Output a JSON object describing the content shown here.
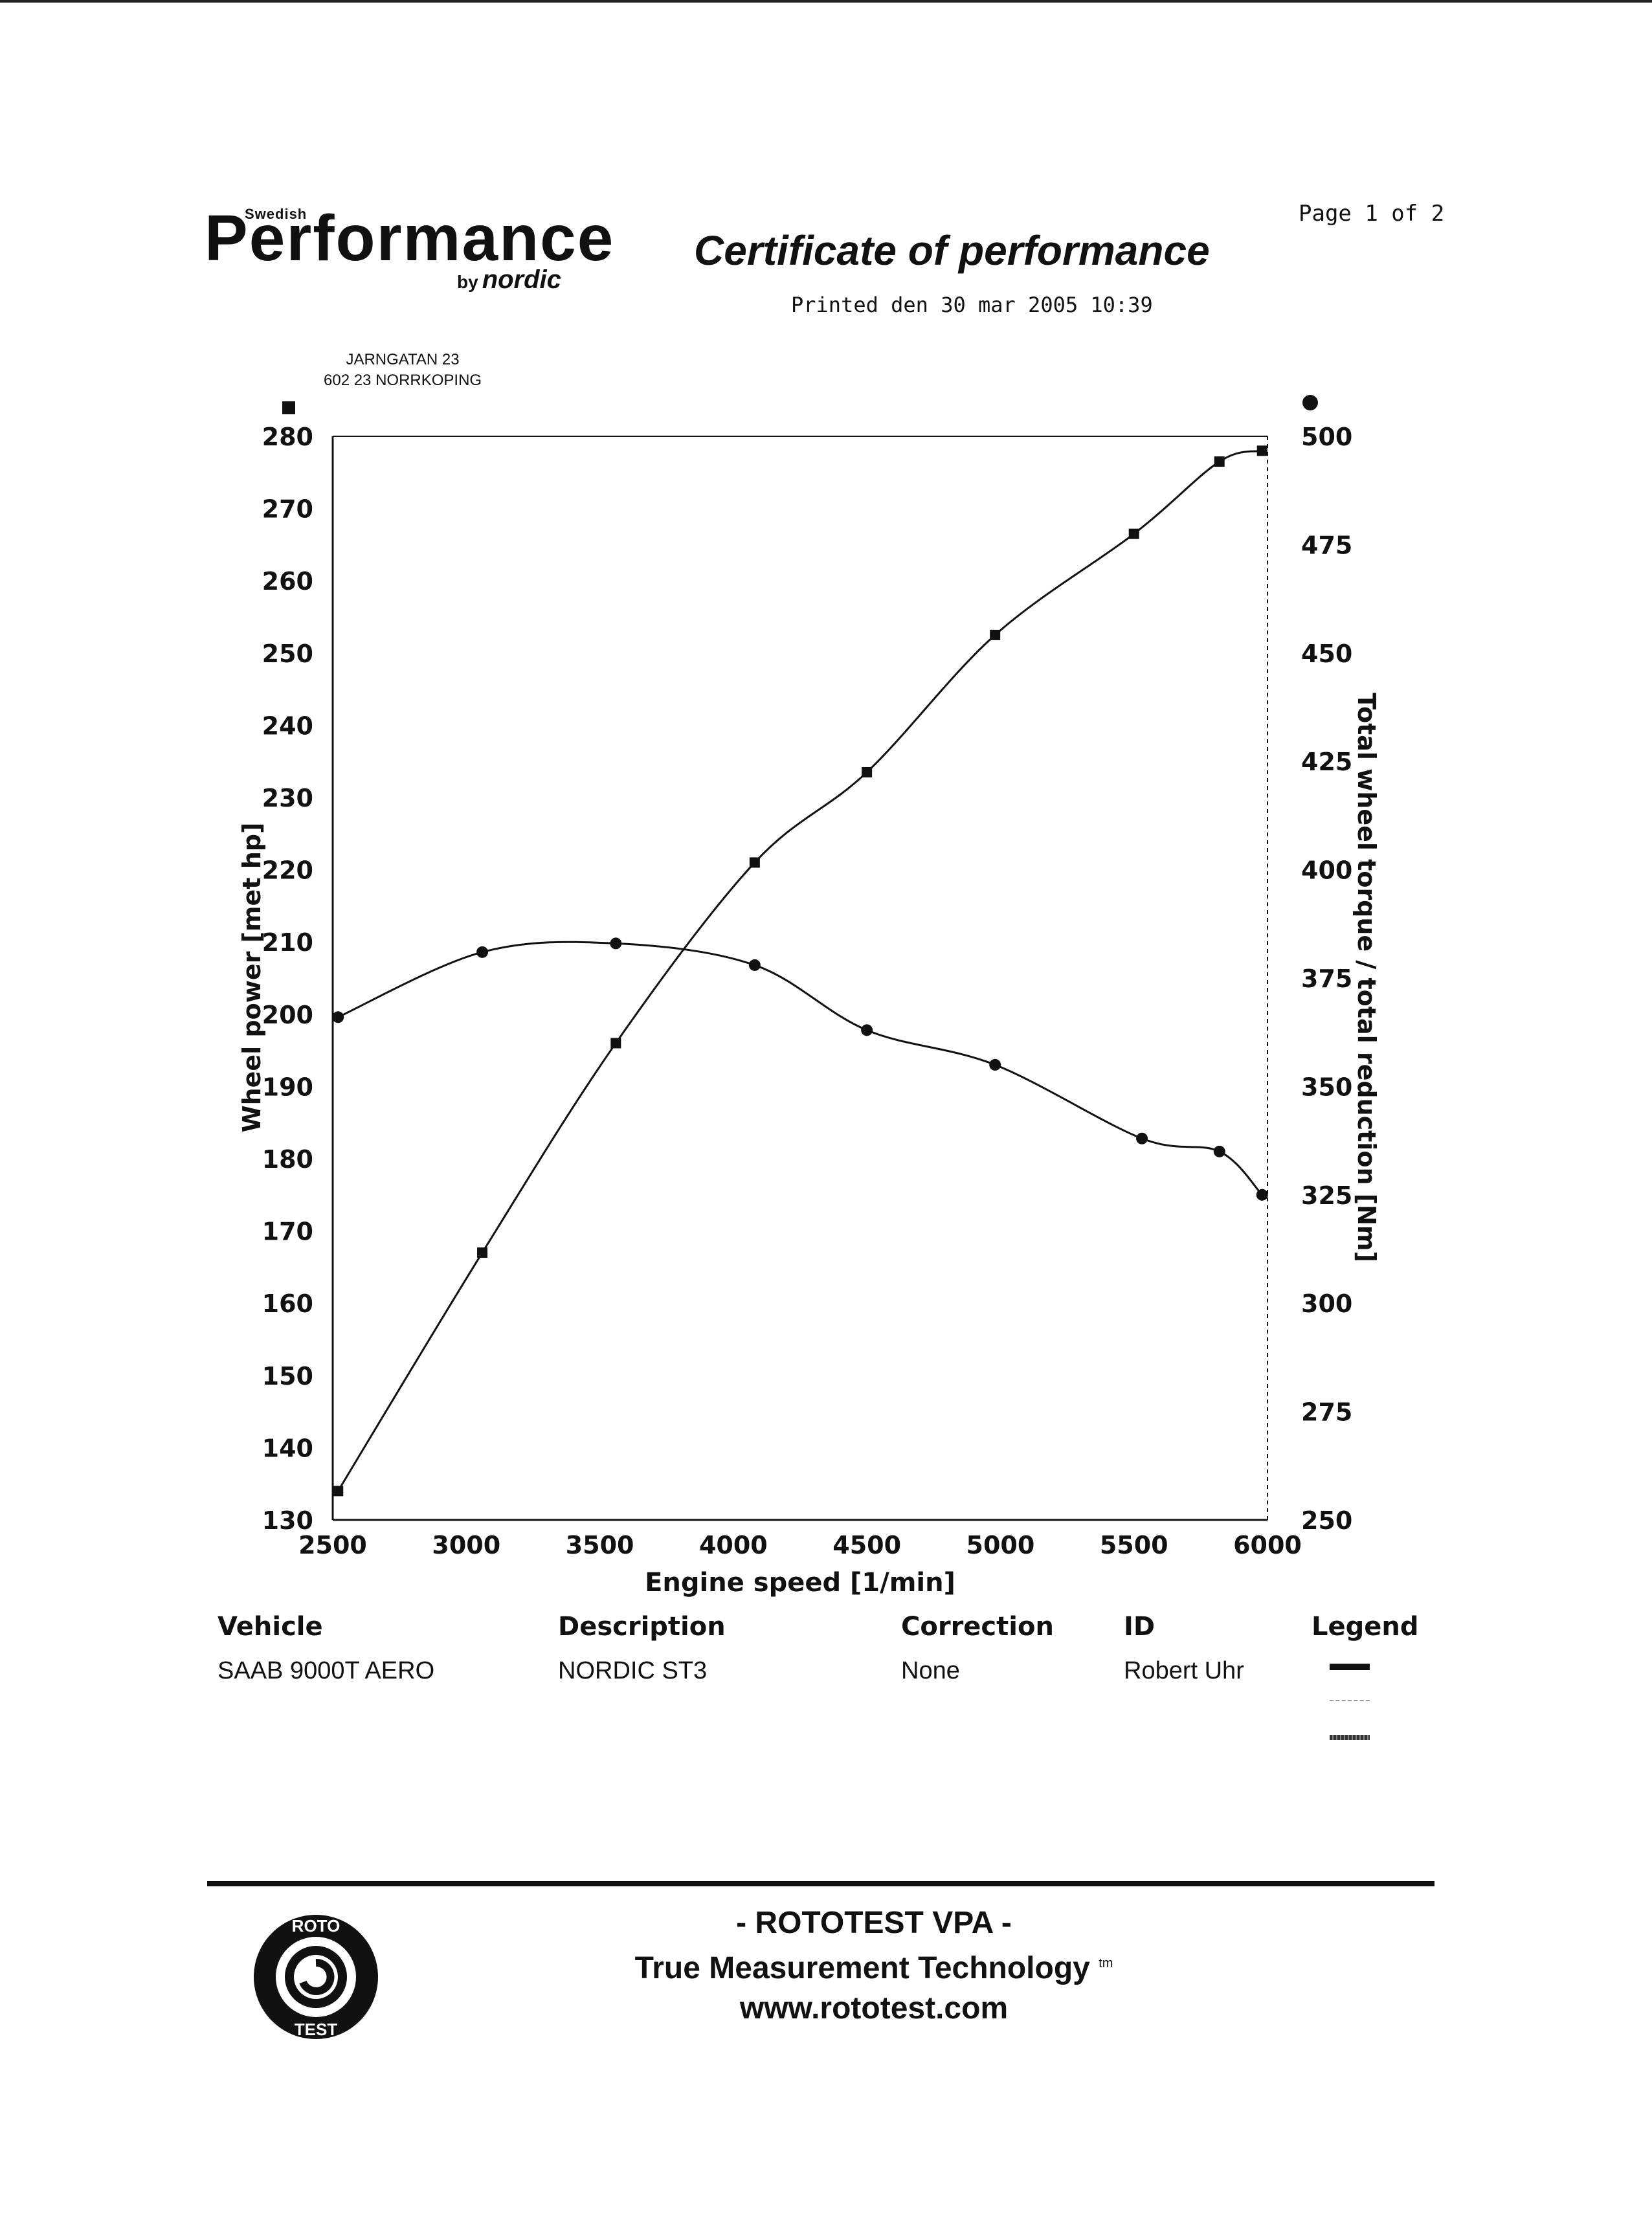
{
  "header": {
    "brand_small": "Swedish",
    "brand_main": "Performance",
    "brand_by": "by",
    "brand_sub": "nordic",
    "title": "Certificate of performance",
    "printed": "Printed den 30 mar 2005 10:39",
    "page": "Page 1 of 2",
    "address_line1": "JARNGATAN 23",
    "address_line2": "602 23 NORRKOPING"
  },
  "chart_data": {
    "type": "line",
    "xlabel": "Engine speed [1/min]",
    "ylabel": "Wheel power [met hp]",
    "y2label": "Total wheel torque / total reduction [Nm]",
    "xlim": [
      2500,
      6000
    ],
    "ylim": [
      130,
      280
    ],
    "y2lim": [
      250,
      500
    ],
    "x_ticks": [
      2500,
      3000,
      3500,
      4000,
      4500,
      5000,
      5500,
      6000
    ],
    "y_ticks": [
      130,
      140,
      150,
      160,
      170,
      180,
      190,
      200,
      210,
      220,
      230,
      240,
      250,
      260,
      270,
      280
    ],
    "y2_ticks": [
      250,
      275,
      300,
      325,
      350,
      375,
      400,
      425,
      450,
      475,
      500
    ],
    "grid": false,
    "series": [
      {
        "name": "",
        "axis": "left",
        "marker": "square",
        "x": [
          2520,
          3060,
          3560,
          4080,
          4500,
          4980,
          5500,
          5820,
          5980
        ],
        "y": [
          134,
          167,
          196,
          221,
          233.5,
          252.5,
          266.5,
          276.5,
          278
        ]
      },
      {
        "name": "",
        "axis": "right",
        "marker": "circle",
        "x": [
          2520,
          3060,
          3560,
          4080,
          4500,
          4980,
          5530,
          5820,
          5980
        ],
        "y": [
          366,
          381,
          383,
          378,
          363,
          355,
          338,
          335,
          325
        ]
      }
    ]
  },
  "table": {
    "headers": [
      "Vehicle",
      "Description",
      "Correction",
      "ID",
      "Legend"
    ],
    "values": [
      "SAAB 9000T AERO",
      "NORDIC ST3",
      "None",
      "Robert Uhr"
    ]
  },
  "footer": {
    "line1": "- ROTOTEST VPA -",
    "line2": "True Measurement Technology",
    "tm": "tm",
    "line3": "www.rototest.com",
    "logo_top": "ROTO",
    "logo_bottom": "TEST"
  },
  "colors": {
    "ink": "#111111",
    "paper": "#ffffff"
  }
}
